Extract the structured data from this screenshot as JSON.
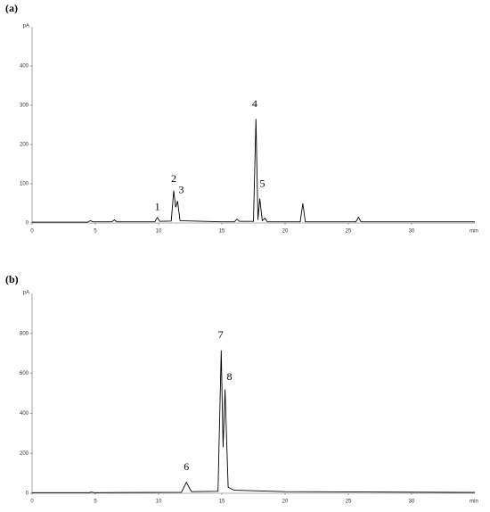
{
  "chart_data": [
    {
      "type": "line",
      "panel_label": "(a)",
      "y_label": "pA",
      "x_label": "min",
      "xlim": [
        0,
        35
      ],
      "xticks": [
        0,
        5,
        10,
        15,
        20,
        25,
        30
      ],
      "ylim": [
        0,
        500
      ],
      "yticks": [
        0,
        100,
        200,
        300,
        400
      ],
      "x": [
        0,
        4.4,
        4.6,
        4.8,
        6.3,
        6.5,
        6.7,
        9.7,
        9.9,
        10.1,
        11.0,
        11.2,
        11.35,
        11.5,
        11.7,
        15.0,
        16.0,
        16.2,
        16.4,
        17.5,
        17.7,
        17.85,
        18.0,
        18.2,
        18.4,
        18.6,
        21.2,
        21.4,
        21.6,
        25.6,
        25.8,
        26.0,
        35
      ],
      "series": [
        {
          "color": "#000000",
          "values": [
            2,
            2,
            6,
            3,
            3,
            8,
            3,
            3,
            14,
            4,
            5,
            82,
            40,
            56,
            6,
            3,
            3,
            10,
            4,
            4,
            265,
            8,
            62,
            6,
            12,
            3,
            3,
            50,
            3,
            3,
            15,
            3,
            3
          ]
        }
      ],
      "annotations": [
        {
          "text": "1",
          "x": 9.9,
          "y": 39
        },
        {
          "text": "2",
          "x": 11.2,
          "y": 111
        },
        {
          "text": "3",
          "x": 11.8,
          "y": 82
        },
        {
          "text": "4",
          "x": 17.6,
          "y": 302
        },
        {
          "text": "5",
          "x": 18.2,
          "y": 98
        }
      ]
    },
    {
      "type": "line",
      "panel_label": "(b)",
      "y_label": "pA",
      "x_label": "min",
      "xlim": [
        0,
        35
      ],
      "xticks": [
        0,
        5,
        10,
        15,
        20,
        25,
        30
      ],
      "ylim": [
        0,
        1000
      ],
      "yticks": [
        0,
        200,
        400,
        600,
        800
      ],
      "x": [
        0,
        4.5,
        4.7,
        4.9,
        11.8,
        12.2,
        12.6,
        14.7,
        14.95,
        15.1,
        15.25,
        15.5,
        16.0,
        20,
        35
      ],
      "series": [
        {
          "color": "#000000",
          "values": [
            3,
            3,
            6,
            3,
            5,
            55,
            8,
            10,
            715,
            230,
            520,
            30,
            15,
            8,
            4
          ]
        }
      ],
      "annotations": [
        {
          "text": "6",
          "x": 12.2,
          "y": 129
        },
        {
          "text": "7",
          "x": 14.9,
          "y": 790
        },
        {
          "text": "8",
          "x": 15.6,
          "y": 580
        }
      ]
    }
  ]
}
